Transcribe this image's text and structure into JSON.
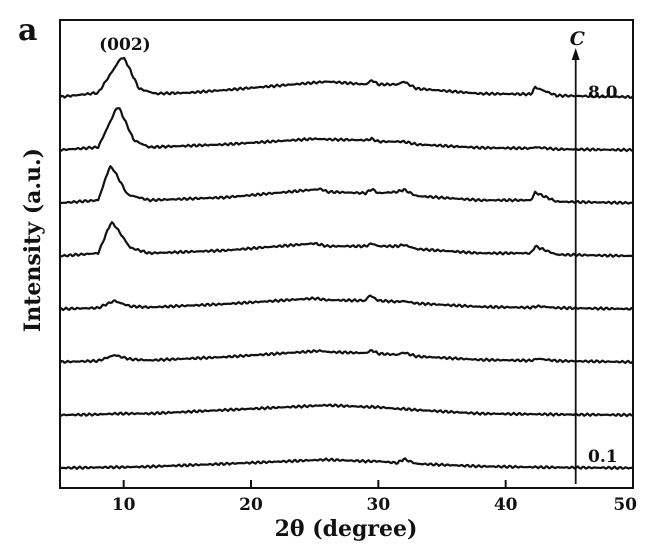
{
  "panel_label": "a",
  "chart_data": {
    "type": "line",
    "xlabel": "2θ (degree)",
    "ylabel": "Intensity (a.u.)",
    "xlim": [
      5,
      50
    ],
    "x_ticks": [
      10,
      20,
      30,
      40,
      50
    ],
    "y_ticks": [],
    "grid": false,
    "stacked_offset": true,
    "peak_annotation": {
      "label": "(002)",
      "x": 10.1
    },
    "concentration_arrow": {
      "label": "C",
      "x": 45.5,
      "start_value": "0.1",
      "end_value": "8.0",
      "direction": "up"
    },
    "series": [
      {
        "values": {
          "x": [
            5,
            8,
            9.5,
            10,
            12,
            18,
            26,
            29,
            29.5,
            30,
            31.5,
            32,
            33,
            38,
            42,
            42.3,
            44,
            50
          ],
          "y": [
            0.0,
            0.02,
            0.03,
            0.03,
            0.05,
            0.15,
            0.3,
            0.24,
            0.24,
            0.24,
            0.18,
            0.32,
            0.15,
            0.06,
            0.03,
            0.03,
            0.02,
            0.0
          ]
        }
      },
      {
        "values": {
          "x": [
            5,
            8,
            9.5,
            10,
            12,
            18,
            26,
            29,
            29.5,
            30,
            31.5,
            32,
            33,
            38,
            42,
            42.3,
            44,
            50
          ],
          "y": [
            0.0,
            0.02,
            0.05,
            0.05,
            0.05,
            0.18,
            0.35,
            0.29,
            0.29,
            0.28,
            0.22,
            0.22,
            0.18,
            0.05,
            0.03,
            0.03,
            0.02,
            0.0
          ]
        }
      },
      {
        "values": {
          "x": [
            5,
            8,
            9.3,
            9.5,
            10.5,
            12,
            18,
            25.5,
            26,
            29,
            29.5,
            30,
            31.5,
            32,
            33,
            38,
            42,
            42.5,
            44,
            50
          ],
          "y": [
            0.0,
            0.04,
            0.25,
            0.22,
            0.1,
            0.06,
            0.18,
            0.4,
            0.36,
            0.32,
            0.42,
            0.3,
            0.26,
            0.34,
            0.2,
            0.08,
            0.05,
            0.12,
            0.04,
            0.0
          ]
        }
      },
      {
        "values": {
          "x": [
            5,
            8,
            9.3,
            9.5,
            10.5,
            12,
            18,
            25,
            26,
            29,
            29.3,
            30,
            31.5,
            32,
            33,
            38,
            42,
            42.5,
            44,
            50
          ],
          "y": [
            0.0,
            0.04,
            0.3,
            0.25,
            0.1,
            0.06,
            0.18,
            0.38,
            0.32,
            0.3,
            0.5,
            0.3,
            0.26,
            0.28,
            0.2,
            0.08,
            0.05,
            0.1,
            0.04,
            0.0
          ]
        }
      },
      {
        "values": {
          "x": [
            5,
            8,
            9,
            9.3,
            10.5,
            12,
            18,
            25,
            26,
            29,
            29.5,
            30,
            31.5,
            32,
            33,
            38,
            42,
            42.3,
            44,
            50
          ],
          "y": [
            0.0,
            0.1,
            1.2,
            1.1,
            0.3,
            0.1,
            0.2,
            0.45,
            0.35,
            0.35,
            0.45,
            0.35,
            0.35,
            0.4,
            0.25,
            0.1,
            0.1,
            0.35,
            0.05,
            0.0
          ]
        }
      },
      {
        "values": {
          "x": [
            5,
            8,
            8.9,
            9.2,
            10.3,
            12,
            18,
            25.5,
            26,
            29,
            29.5,
            30,
            31.5,
            32,
            33,
            38,
            42,
            42.3,
            44,
            50
          ],
          "y": [
            0.0,
            0.1,
            1.3,
            1.2,
            0.3,
            0.1,
            0.2,
            0.5,
            0.4,
            0.35,
            0.5,
            0.35,
            0.4,
            0.48,
            0.25,
            0.1,
            0.1,
            0.38,
            0.05,
            0.0
          ]
        }
      },
      {
        "values": {
          "x": [
            5,
            8,
            9.5,
            9.7,
            10.8,
            12,
            18,
            25,
            26,
            29,
            29.5,
            30,
            31.5,
            32,
            33,
            38,
            42,
            42.3,
            44,
            50
          ],
          "y": [
            0.0,
            0.1,
            1.55,
            1.45,
            0.35,
            0.1,
            0.2,
            0.4,
            0.38,
            0.35,
            0.4,
            0.3,
            0.3,
            0.3,
            0.2,
            0.08,
            0.06,
            0.1,
            0.03,
            0.0
          ]
        }
      },
      {
        "values": {
          "x": [
            5,
            8,
            9.8,
            10.1,
            11.2,
            12.5,
            15,
            18,
            26,
            29,
            29.5,
            30,
            31.5,
            32,
            33,
            38,
            42,
            42.3,
            44,
            50
          ],
          "y": [
            0.0,
            0.15,
            1.4,
            1.35,
            0.3,
            0.12,
            0.15,
            0.25,
            0.55,
            0.45,
            0.6,
            0.45,
            0.45,
            0.55,
            0.3,
            0.12,
            0.1,
            0.35,
            0.05,
            0.0
          ]
        }
      }
    ]
  }
}
